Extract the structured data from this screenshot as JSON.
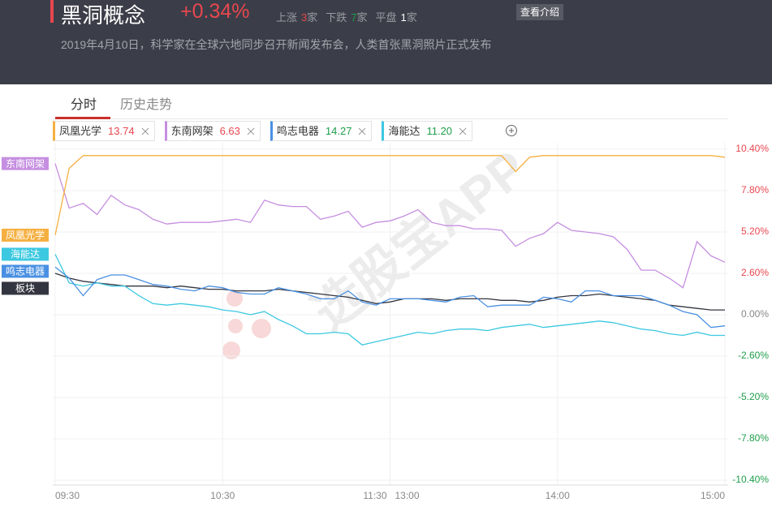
{
  "header": {
    "title": "黑洞概念",
    "change": "+0.34%",
    "stats": [
      {
        "label": "上涨",
        "count": 3,
        "unit": "家"
      },
      {
        "label": "下跌",
        "count": 7,
        "unit": "家"
      },
      {
        "label": "平盘",
        "count": 1,
        "unit": "家"
      }
    ],
    "button": "查看介绍",
    "subtitle": "2019年4月10日，科学家在全球六地同步召开新闻发布会，人类首张黑洞照片正式发布"
  },
  "tabs": [
    "分时",
    "历史走势"
  ],
  "watermark": "选股宝APP",
  "chart_data": {
    "type": "line",
    "x": [
      "09:30",
      "09:35",
      "09:40",
      "09:45",
      "09:50",
      "09:55",
      "10:00",
      "10:05",
      "10:10",
      "10:15",
      "10:20",
      "10:25",
      "10:30",
      "10:35",
      "10:40",
      "10:45",
      "10:50",
      "10:55",
      "11:00",
      "11:05",
      "11:10",
      "11:15",
      "11:20",
      "11:25",
      "11:30",
      "13:05",
      "13:10",
      "13:15",
      "13:20",
      "13:25",
      "13:30",
      "13:35",
      "13:40",
      "13:45",
      "13:50",
      "13:55",
      "14:00",
      "14:05",
      "14:10",
      "14:15",
      "14:20",
      "14:25",
      "14:30",
      "14:35",
      "14:40",
      "14:45",
      "14:50",
      "14:55",
      "15:00"
    ],
    "xticks": [
      "09:30",
      "10:30",
      "11:30",
      "13:00",
      "14:00",
      "15:00"
    ],
    "ylim": [
      -10.4,
      10.4
    ],
    "yticks": [
      {
        "value": 10.4,
        "label": "10.40%"
      },
      {
        "value": 7.8,
        "label": "7.80%"
      },
      {
        "value": 5.2,
        "label": "5.20%"
      },
      {
        "value": 2.6,
        "label": "2.60%"
      },
      {
        "value": 0,
        "label": "0.00%"
      },
      {
        "value": -2.6,
        "label": "-2.60%"
      },
      {
        "value": -5.2,
        "label": "-5.20%"
      },
      {
        "value": -7.8,
        "label": "-7.80%"
      },
      {
        "value": -10.4,
        "label": "-10.40%"
      }
    ],
    "grid": true,
    "series": [
      {
        "name": "凤凰光学",
        "price": "13.74",
        "color": "#f5b041",
        "values": [
          5.0,
          9.2,
          10.0,
          10.0,
          10.0,
          10.0,
          10.0,
          10.0,
          10.0,
          10.0,
          10.0,
          10.0,
          10.0,
          10.0,
          10.0,
          10.0,
          10.0,
          10.0,
          10.0,
          10.0,
          10.0,
          10.0,
          10.0,
          10.0,
          10.0,
          10.0,
          10.0,
          10.0,
          10.0,
          10.0,
          10.0,
          10.0,
          10.0,
          9.0,
          9.9,
          10.0,
          10.0,
          10.0,
          10.0,
          10.0,
          10.0,
          10.0,
          10.0,
          10.0,
          10.0,
          10.0,
          10.0,
          10.0,
          9.9
        ]
      },
      {
        "name": "东南网架",
        "price": "6.63",
        "color": "#c58ee0",
        "values": [
          9.5,
          6.7,
          7.0,
          6.3,
          7.5,
          6.9,
          6.6,
          6.0,
          5.7,
          5.8,
          5.8,
          5.8,
          5.9,
          6.0,
          5.8,
          7.2,
          6.9,
          6.8,
          6.8,
          6.0,
          6.2,
          6.5,
          5.5,
          5.8,
          5.9,
          6.2,
          6.6,
          5.8,
          5.6,
          5.6,
          5.4,
          5.4,
          5.3,
          4.3,
          4.8,
          5.1,
          5.8,
          5.3,
          5.2,
          5.1,
          4.9,
          4.1,
          2.8,
          2.8,
          2.3,
          1.7,
          4.6,
          3.7,
          3.3
        ]
      },
      {
        "name": "鸣志电器",
        "price": "14.27",
        "color": "#4a90e2",
        "values": [
          3.0,
          2.3,
          1.2,
          2.2,
          2.5,
          2.5,
          2.2,
          1.9,
          1.8,
          1.6,
          1.5,
          1.8,
          1.7,
          1.4,
          1.3,
          1.3,
          1.7,
          1.5,
          1.3,
          1.0,
          1.0,
          1.5,
          0.8,
          0.6,
          1.0,
          1.0,
          1.0,
          0.9,
          0.8,
          1.1,
          1.2,
          0.5,
          0.6,
          0.6,
          0.6,
          1.1,
          1.0,
          0.8,
          1.5,
          1.5,
          1.2,
          1.2,
          1.2,
          0.9,
          0.6,
          0.2,
          0.0,
          -0.8,
          -0.7
        ]
      },
      {
        "name": "海能达",
        "price": "11.20",
        "color": "#3cc8e0",
        "values": [
          3.8,
          2.0,
          1.8,
          2.0,
          1.8,
          1.8,
          1.2,
          0.7,
          0.6,
          0.7,
          0.6,
          0.5,
          0.3,
          0.2,
          0.0,
          0.2,
          -0.3,
          -0.7,
          -1.2,
          -1.2,
          -1.1,
          -1.2,
          -1.9,
          -1.7,
          -1.5,
          -1.3,
          -1.1,
          -1.2,
          -1.0,
          -0.9,
          -0.9,
          -1.0,
          -0.8,
          -0.7,
          -0.6,
          -0.8,
          -0.7,
          -0.6,
          -0.5,
          -0.4,
          -0.5,
          -0.7,
          -0.9,
          -1.0,
          -1.2,
          -1.3,
          -1.1,
          -1.3,
          -1.3
        ]
      },
      {
        "name": "板块",
        "color": "#333640",
        "values": [
          2.6,
          2.3,
          2.1,
          2.0,
          1.9,
          1.8,
          1.8,
          1.8,
          1.7,
          1.8,
          1.7,
          1.6,
          1.6,
          1.5,
          1.5,
          1.5,
          1.6,
          1.5,
          1.4,
          1.3,
          1.2,
          1.1,
          0.9,
          0.7,
          0.8,
          1.0,
          1.0,
          1.0,
          0.9,
          1.0,
          1.0,
          1.0,
          0.9,
          0.9,
          0.8,
          0.9,
          1.1,
          1.2,
          1.2,
          1.3,
          1.2,
          1.1,
          1.0,
          0.9,
          0.6,
          0.5,
          0.4,
          0.3,
          0.3
        ]
      }
    ]
  }
}
